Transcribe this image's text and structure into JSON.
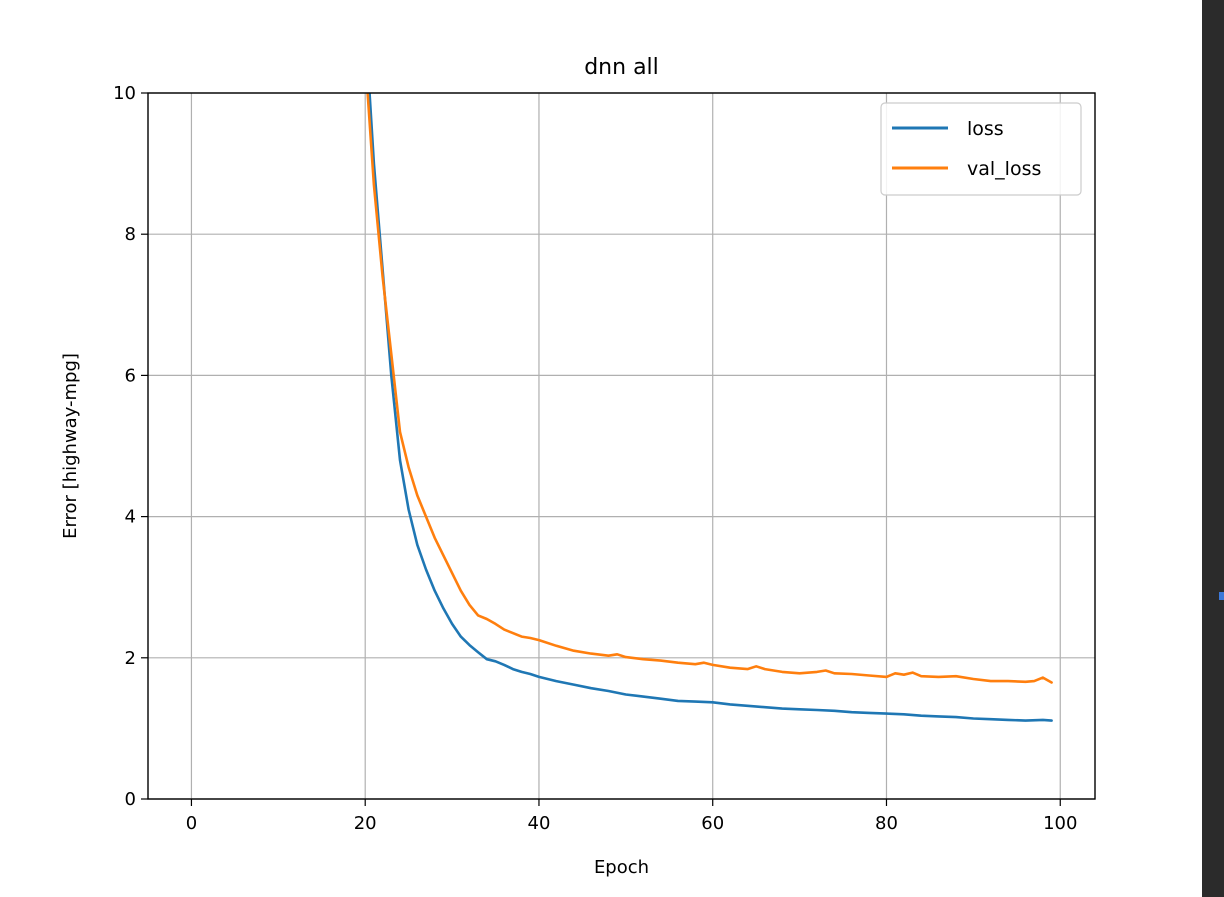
{
  "chart_data": {
    "type": "line",
    "title": "dnn all",
    "xlabel": "Epoch",
    "ylabel": "Error [highway-mpg]",
    "xlim": [
      -5,
      104
    ],
    "ylim": [
      0,
      10
    ],
    "xticks": [
      0,
      20,
      40,
      60,
      80,
      100
    ],
    "yticks": [
      0,
      2,
      4,
      6,
      8,
      10
    ],
    "grid": true,
    "legend_position": "top-right",
    "series": [
      {
        "name": "loss",
        "color": "#1f77b4",
        "x": [
          19,
          20,
          21,
          22,
          23,
          24,
          25,
          26,
          27,
          28,
          29,
          30,
          31,
          32,
          33,
          34,
          35,
          36,
          37,
          38,
          39,
          40,
          42,
          44,
          46,
          48,
          50,
          52,
          54,
          56,
          58,
          60,
          62,
          64,
          66,
          68,
          70,
          72,
          74,
          76,
          78,
          80,
          82,
          84,
          86,
          88,
          90,
          92,
          94,
          96,
          98,
          99
        ],
        "y": [
          13.5,
          11.0,
          9.0,
          7.5,
          6.0,
          4.8,
          4.1,
          3.6,
          3.25,
          2.95,
          2.7,
          2.48,
          2.3,
          2.18,
          2.08,
          1.98,
          1.95,
          1.9,
          1.84,
          1.8,
          1.77,
          1.73,
          1.67,
          1.62,
          1.57,
          1.53,
          1.48,
          1.45,
          1.42,
          1.39,
          1.38,
          1.37,
          1.34,
          1.32,
          1.3,
          1.28,
          1.27,
          1.26,
          1.25,
          1.23,
          1.22,
          1.21,
          1.2,
          1.18,
          1.17,
          1.16,
          1.14,
          1.13,
          1.12,
          1.11,
          1.12,
          1.11
        ]
      },
      {
        "name": "val_loss",
        "color": "#ff7f0e",
        "x": [
          19,
          20,
          21,
          22,
          23,
          24,
          25,
          26,
          27,
          28,
          29,
          30,
          31,
          32,
          33,
          34,
          35,
          36,
          37,
          38,
          39,
          40,
          42,
          44,
          46,
          48,
          49,
          50,
          52,
          54,
          56,
          58,
          59,
          60,
          62,
          64,
          65,
          66,
          68,
          70,
          72,
          73,
          74,
          76,
          78,
          80,
          81,
          82,
          83,
          84,
          86,
          88,
          90,
          92,
          94,
          96,
          97,
          98,
          99
        ],
        "y": [
          12.5,
          10.5,
          8.7,
          7.4,
          6.3,
          5.2,
          4.7,
          4.3,
          4.0,
          3.7,
          3.45,
          3.2,
          2.95,
          2.75,
          2.6,
          2.55,
          2.48,
          2.4,
          2.35,
          2.3,
          2.28,
          2.25,
          2.17,
          2.1,
          2.06,
          2.03,
          2.05,
          2.01,
          1.98,
          1.96,
          1.93,
          1.91,
          1.93,
          1.9,
          1.86,
          1.84,
          1.88,
          1.84,
          1.8,
          1.78,
          1.8,
          1.82,
          1.78,
          1.77,
          1.75,
          1.73,
          1.78,
          1.76,
          1.79,
          1.74,
          1.73,
          1.74,
          1.7,
          1.67,
          1.67,
          1.66,
          1.67,
          1.72,
          1.65
        ]
      }
    ]
  }
}
